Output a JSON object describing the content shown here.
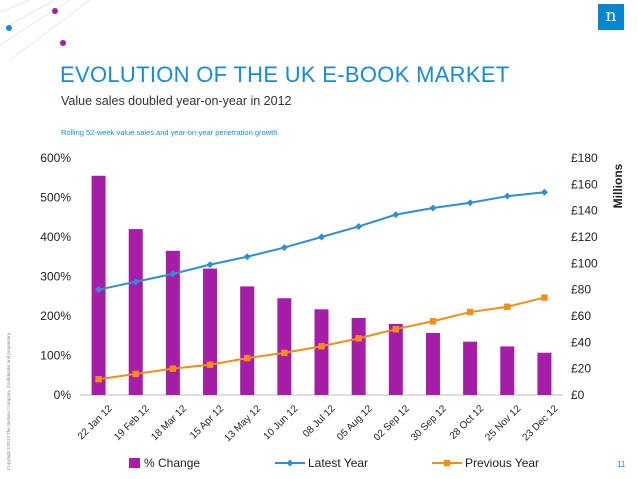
{
  "header": {
    "title": "EVOLUTION OF THE UK E-BOOK MARKET",
    "subtitle": "Value sales doubled year-on-year in 2012",
    "note": "Rolling 52-week value sales and year-on-year penetration growth"
  },
  "footer": {
    "copyright": "Copyright ©2013 The Nielsen Company. Confidential and proprietary.",
    "page_number": "11"
  },
  "logo": {
    "mark": "n"
  },
  "colors": {
    "accent": "#1a8bd2",
    "bar": "#a61ea8",
    "latest": "#2f8fd4",
    "previous": "#f28e18",
    "logo_bg": "#0a86cf"
  },
  "chart_data": {
    "type": "bar",
    "categories": [
      "22 Jan 12",
      "19 Feb 12",
      "18 Mar 12",
      "15 Apr 12",
      "13 May 12",
      "10 Jun 12",
      "08 Jul 12",
      "05 Aug 12",
      "02 Sep 12",
      "30 Sep 12",
      "28 Oct 12",
      "25 Nov 12",
      "23 Dec 12"
    ],
    "series": [
      {
        "name": "% Change",
        "type": "bar",
        "axis": "left",
        "values": [
          555,
          420,
          365,
          320,
          275,
          245,
          217,
          195,
          180,
          157,
          135,
          123,
          107
        ]
      },
      {
        "name": "Latest Year",
        "type": "line",
        "axis": "right",
        "values": [
          80,
          86,
          92,
          99,
          105,
          112,
          120,
          128,
          137,
          142,
          146,
          151,
          154
        ]
      },
      {
        "name": "Previous Year",
        "type": "line",
        "axis": "right",
        "values": [
          12,
          16,
          20,
          23,
          28,
          32,
          37,
          43,
          50,
          56,
          63,
          67,
          74
        ]
      }
    ],
    "left_axis": {
      "ticks": [
        "0%",
        "100%",
        "200%",
        "300%",
        "400%",
        "500%",
        "600%"
      ],
      "ylim": [
        0,
        600
      ]
    },
    "right_axis": {
      "ticks": [
        "£0",
        "£20",
        "£40",
        "£60",
        "£80",
        "£100",
        "£120",
        "£140",
        "£160",
        "£180"
      ],
      "ylim": [
        0,
        180
      ],
      "label": "Millions"
    },
    "legend": [
      "% Change",
      "Latest Year",
      "Previous Year"
    ],
    "legend_position": "bottom"
  }
}
